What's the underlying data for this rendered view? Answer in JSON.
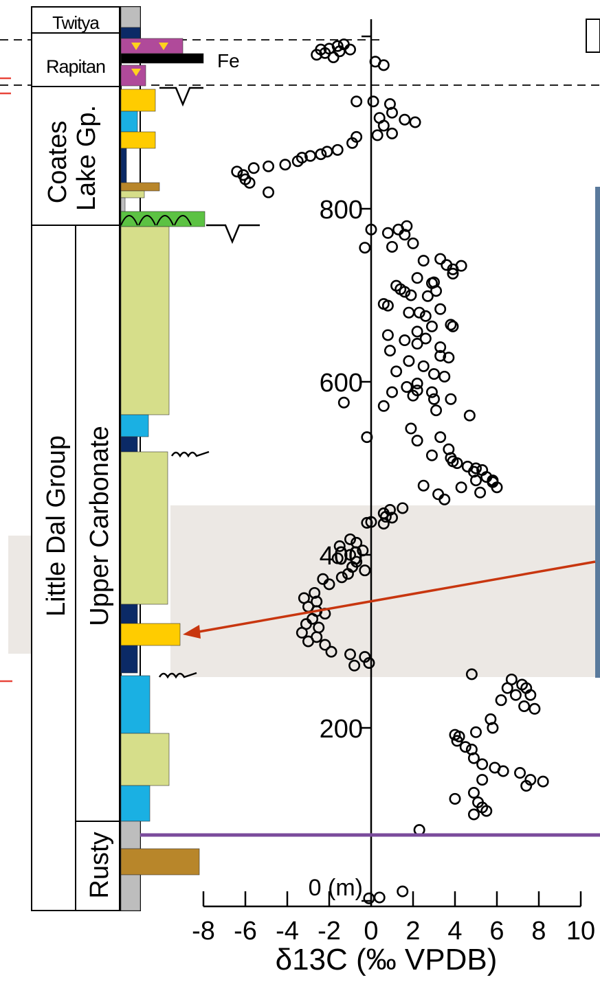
{
  "figure": {
    "units": {
      "lithology_fe": "Fe"
    },
    "panel_frame_letter": ""
  },
  "stratigraphy": {
    "formations": [
      {
        "key": "twitya",
        "label": "Twitya"
      },
      {
        "key": "rapitan",
        "label": "Rapitan"
      },
      {
        "key": "coates",
        "label_line1": "Coates",
        "label_line2": "Lake Gp."
      },
      {
        "key": "little_dal",
        "label": "Little Dal Group"
      },
      {
        "key": "upper_carbonate",
        "label": "Upper Carbonate"
      },
      {
        "key": "rusty",
        "label": "Rusty"
      }
    ]
  },
  "colors": {
    "green_carbonate": "#d6de8a",
    "blue_carbonate": "#1ab0e3",
    "dark_navy": "#0b2a66",
    "yellow": "#ffcc00",
    "brown": "#b8862a",
    "magenta": "#b04a9a",
    "stromatolite_green": "#5cc243",
    "grey": "#bdbdbd",
    "highlight_band": "#ece8e4",
    "arrow": "#c8360f",
    "purple_line": "#7a4b9c",
    "marker_red": "#e8453a"
  },
  "chart_data": {
    "type": "scatter",
    "title": "",
    "xlabel": "δ13C (‰ VPDB)",
    "ylabel": "(m)",
    "xlim": [
      -8,
      10
    ],
    "ylim": [
      0,
      1000
    ],
    "xticks": [
      -8,
      -6,
      -4,
      -2,
      0,
      2,
      4,
      6,
      8,
      10
    ],
    "xtick_labels": [
      "-8",
      "-6",
      "-4",
      "-2",
      "0",
      "2",
      "4",
      "6",
      "8",
      "10"
    ],
    "yticks": [
      0,
      200,
      400,
      600,
      800
    ],
    "ytick_labels": [
      "0 (m)",
      "200",
      "400",
      "600",
      "800"
    ],
    "series": [
      {
        "points": [
          [
            0.2,
            970
          ],
          [
            0.6,
            966
          ],
          [
            -1.5,
            982
          ],
          [
            -1.3,
            990
          ],
          [
            -2.0,
            985
          ],
          [
            -2.6,
            978
          ],
          [
            -1.8,
            975
          ],
          [
            -2.2,
            980
          ],
          [
            -1.0,
            984
          ],
          [
            -1.6,
            988
          ],
          [
            -2.4,
            984
          ],
          [
            -0.7,
            924
          ],
          [
            0.1,
            924
          ],
          [
            0.9,
            921
          ],
          [
            1.0,
            911
          ],
          [
            0.4,
            905
          ],
          [
            1.6,
            903
          ],
          [
            2.1,
            900
          ],
          [
            0.6,
            896
          ],
          [
            1.0,
            887
          ],
          [
            0.3,
            885
          ],
          [
            -0.7,
            883
          ],
          [
            -0.9,
            876
          ],
          [
            -1.6,
            868
          ],
          [
            -2.1,
            866
          ],
          [
            -2.4,
            863
          ],
          [
            -2.9,
            861
          ],
          [
            -3.3,
            859
          ],
          [
            -3.5,
            855
          ],
          [
            -4.1,
            851
          ],
          [
            -4.9,
            849
          ],
          [
            -5.6,
            847
          ],
          [
            -6.4,
            843
          ],
          [
            -6.1,
            839
          ],
          [
            -6.0,
            834
          ],
          [
            -5.8,
            830
          ],
          [
            -4.9,
            819
          ],
          [
            0.0,
            776
          ],
          [
            0.8,
            772
          ],
          [
            1.3,
            776
          ],
          [
            1.7,
            780
          ],
          [
            1.6,
            770
          ],
          [
            -0.3,
            755
          ],
          [
            1.0,
            756
          ],
          [
            2.0,
            760
          ],
          [
            2.5,
            740
          ],
          [
            3.3,
            742
          ],
          [
            3.6,
            735
          ],
          [
            3.9,
            730
          ],
          [
            4.3,
            734
          ],
          [
            3.9,
            725
          ],
          [
            2.2,
            720
          ],
          [
            2.9,
            714
          ],
          [
            1.2,
            711
          ],
          [
            1.4,
            707
          ],
          [
            1.6,
            704
          ],
          [
            1.9,
            700
          ],
          [
            2.7,
            699
          ],
          [
            3.0,
            715
          ],
          [
            3.1,
            705
          ],
          [
            0.6,
            690
          ],
          [
            0.8,
            688
          ],
          [
            3.3,
            684
          ],
          [
            1.8,
            680
          ],
          [
            2.3,
            680
          ],
          [
            2.6,
            676
          ],
          [
            3.8,
            666
          ],
          [
            2.9,
            664
          ],
          [
            3.9,
            664
          ],
          [
            2.2,
            658
          ],
          [
            2.6,
            650
          ],
          [
            1.6,
            648
          ],
          [
            2.2,
            644
          ],
          [
            3.3,
            640
          ],
          [
            3.3,
            630
          ],
          [
            3.7,
            628
          ],
          [
            1.8,
            624
          ],
          [
            2.5,
            618
          ],
          [
            1.2,
            612
          ],
          [
            0.9,
            636
          ],
          [
            0.8,
            654
          ],
          [
            3.0,
            609
          ],
          [
            3.5,
            606
          ],
          [
            2.2,
            598
          ],
          [
            1.7,
            594
          ],
          [
            2.2,
            590
          ],
          [
            2.9,
            588
          ],
          [
            1.0,
            588
          ],
          [
            2.0,
            584
          ],
          [
            3.0,
            580
          ],
          [
            3.8,
            580
          ],
          [
            -1.3,
            576
          ],
          [
            0.6,
            572
          ],
          [
            3.1,
            567
          ],
          [
            4.7,
            561
          ],
          [
            1.9,
            546
          ],
          [
            -0.2,
            536
          ],
          [
            3.3,
            536
          ],
          [
            2.2,
            532
          ],
          [
            3.7,
            522
          ],
          [
            2.9,
            515
          ],
          [
            3.8,
            512
          ],
          [
            4.1,
            506
          ],
          [
            3.9,
            508
          ],
          [
            4.6,
            502
          ],
          [
            5.0,
            500
          ],
          [
            5.3,
            498
          ],
          [
            4.9,
            496
          ],
          [
            5.5,
            490
          ],
          [
            5.0,
            486
          ],
          [
            5.8,
            486
          ],
          [
            6.0,
            478
          ],
          [
            5.8,
            484
          ],
          [
            4.3,
            478
          ],
          [
            2.5,
            480
          ],
          [
            3.2,
            470
          ],
          [
            5.2,
            472
          ],
          [
            3.5,
            464
          ],
          [
            1.5,
            454
          ],
          [
            0.9,
            452
          ],
          [
            0.6,
            448
          ],
          [
            1.0,
            443
          ],
          [
            0.0,
            438
          ],
          [
            0.6,
            436
          ],
          [
            0.7,
            444
          ],
          [
            -0.2,
            437
          ],
          [
            -1.0,
            418
          ],
          [
            -0.7,
            414
          ],
          [
            -1.5,
            410
          ],
          [
            -0.4,
            405
          ],
          [
            -1.0,
            400
          ],
          [
            -1.6,
            396
          ],
          [
            -0.7,
            392
          ],
          [
            -0.9,
            386
          ],
          [
            -0.3,
            382
          ],
          [
            -1.1,
            378
          ],
          [
            -2.3,
            372
          ],
          [
            -1.4,
            374
          ],
          [
            -2.0,
            366
          ],
          [
            -2.7,
            356
          ],
          [
            -3.2,
            350
          ],
          [
            -2.6,
            346
          ],
          [
            -3.0,
            340
          ],
          [
            -2.6,
            335
          ],
          [
            -2.2,
            332
          ],
          [
            -2.8,
            326
          ],
          [
            -3.1,
            320
          ],
          [
            -2.5,
            316
          ],
          [
            -3.3,
            310
          ],
          [
            -2.6,
            305
          ],
          [
            -3.0,
            300
          ],
          [
            -2.2,
            296
          ],
          [
            -1.9,
            288
          ],
          [
            -1.0,
            285
          ],
          [
            -0.3,
            282
          ],
          [
            -0.1,
            275
          ],
          [
            -0.8,
            272
          ],
          [
            4.8,
            262
          ],
          [
            6.7,
            256
          ],
          [
            7.2,
            250
          ],
          [
            6.5,
            246
          ],
          [
            7.4,
            246
          ],
          [
            6.9,
            238
          ],
          [
            7.6,
            238
          ],
          [
            6.2,
            232
          ],
          [
            7.3,
            225
          ],
          [
            7.8,
            222
          ],
          [
            5.7,
            210
          ],
          [
            5.8,
            200
          ],
          [
            5.0,
            195
          ],
          [
            4.0,
            192
          ],
          [
            4.2,
            190
          ],
          [
            4.1,
            185
          ],
          [
            4.5,
            178
          ],
          [
            4.8,
            175
          ],
          [
            4.9,
            165
          ],
          [
            5.3,
            158
          ],
          [
            5.9,
            154
          ],
          [
            6.3,
            150
          ],
          [
            7.1,
            148
          ],
          [
            7.6,
            140
          ],
          [
            8.2,
            138
          ],
          [
            7.4,
            133
          ],
          [
            5.3,
            140
          ],
          [
            4.9,
            125
          ],
          [
            4.0,
            118
          ],
          [
            5.1,
            114
          ],
          [
            5.3,
            108
          ],
          [
            5.5,
            104
          ],
          [
            4.9,
            100
          ],
          [
            2.3,
            82
          ],
          [
            1.5,
            11
          ],
          [
            0.4,
            4
          ],
          [
            -0.1,
            3
          ]
        ]
      }
    ]
  }
}
